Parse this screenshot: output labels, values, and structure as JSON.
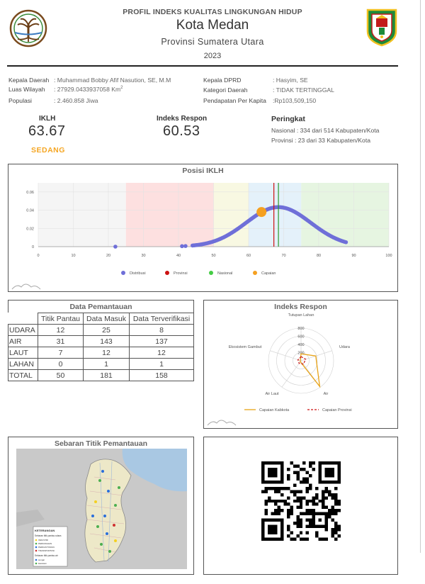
{
  "header": {
    "top_title": "PROFIL INDEKS KUALITAS LINGKUNGAN HIDUP",
    "city": "Kota Medan",
    "province": "Provinsi Sumatera Utara",
    "year": "2023"
  },
  "info": {
    "kepala_daerah_label": "Kepala Daerah",
    "kepala_daerah": "Muhammad Bobby Afif Nasution, SE, M.M",
    "luas_label": "Luas Wilayah",
    "luas": "27929.0433937058 Km",
    "luas_sup": "2",
    "populasi_label": "Populasi",
    "populasi": "2.460.858 Jiwa",
    "dprd_label": "Kepala DPRD",
    "dprd": "Hasyim, SE",
    "kategori_label": "Kategori Daerah",
    "kategori": "TIDAK TERTINGGAL",
    "pendapatan_label": "Pendapatan Per Kapita",
    "pendapatan": "Rp103,509,150"
  },
  "kpi": {
    "iklh_label": "IKLH",
    "iklh_value": "63.67",
    "iklh_category": "SEDANG",
    "respon_label": "Indeks Respon",
    "respon_value": "60.53",
    "peringkat_label": "Peringkat",
    "nasional": "Nasional : 334 dari 514 Kabupaten/Kota",
    "provinsi": "Provinsi  : 23 dari 33 Kabupaten/Kota"
  },
  "chart_data": [
    {
      "type": "scatter",
      "title": "Posisi IKLH",
      "xlim": [
        0,
        100
      ],
      "ylim": [
        0,
        0.07
      ],
      "x_ticks": [
        "0",
        "10",
        "20",
        "30",
        "40",
        "50",
        "60",
        "70",
        "80",
        "90",
        "100"
      ],
      "y_ticks": [
        "0",
        "0.02",
        "0.04",
        "0.06"
      ],
      "bands": [
        {
          "from": 0,
          "to": 25,
          "color": "#f5f5f5"
        },
        {
          "from": 25,
          "to": 50,
          "color": "#fde0e0"
        },
        {
          "from": 50,
          "to": 60,
          "color": "#f8f8e2"
        },
        {
          "from": 60,
          "to": 75,
          "color": "#e4f1fa"
        },
        {
          "from": 75,
          "to": 100,
          "color": "#e6f5e1"
        }
      ],
      "distribution": {
        "mean": 68.5,
        "sd": 9.2
      },
      "outliers": [
        22,
        41,
        42
      ],
      "provinsi_x": 67.2,
      "nasional_x": 68.5,
      "capaian": {
        "x": 63.67,
        "y": 0.038
      },
      "legend": [
        {
          "name": "Distribusi",
          "color": "#6f6fd8"
        },
        {
          "name": "Provinsi",
          "color": "#cc1111"
        },
        {
          "name": "Nasional",
          "color": "#44cc44"
        },
        {
          "name": "Capaian",
          "color": "#f5a020"
        }
      ],
      "grid": true
    },
    {
      "type": "radar",
      "title": "Indeks Respon",
      "axes": [
        "Tutupan Lahan",
        "Udara",
        "Air",
        "Air Laut",
        "Ekosistem Gambut"
      ],
      "rmax": 800,
      "r_ticks": [
        "200",
        "400",
        "600",
        "800"
      ],
      "series": [
        {
          "name": "Capaian Kabkota",
          "color": "#e8a317",
          "values": [
            170,
            380,
            780,
            30,
            20
          ]
        },
        {
          "name": "Capaian Provinsi",
          "color": "#cc1111",
          "values": [
            100,
            120,
            100,
            80,
            80
          ]
        }
      ]
    }
  ],
  "table": {
    "title": "Data Pemantauan",
    "columns": [
      "Titik Pantau",
      "Data Masuk",
      "Data Terverifikasi"
    ],
    "rows": [
      {
        "label": "UDARA",
        "v": [
          "12",
          "25",
          "8"
        ]
      },
      {
        "label": "AIR",
        "v": [
          "31",
          "143",
          "137"
        ]
      },
      {
        "label": "LAUT",
        "v": [
          "7",
          "12",
          "12"
        ]
      },
      {
        "label": "LAHAN",
        "v": [
          "0",
          "1",
          "1"
        ]
      },
      {
        "label": "TOTAL",
        "v": [
          "50",
          "181",
          "158"
        ]
      }
    ]
  },
  "map": {
    "title": "Sebaran Titik Pemantauan",
    "legend_title": "KETERANGAN",
    "legend_items": [
      "Sebaran titik pantau udara",
      "INDUSTRI",
      "PERUMAHAN",
      "PERKANTORAN",
      "TRANSPORTASI",
      "Sebaran titik pantau air",
      "sungai",
      "kawasan"
    ]
  },
  "colors": {
    "accent": "#f5a623",
    "distribusi": "#6f6fd8",
    "provinsi": "#cc1111",
    "nasional": "#44cc44"
  },
  "icons": {
    "left_logo": "klhk-tree-logo",
    "right_logo": "medan-city-emblem",
    "watermark": "mountain-watermark-icon",
    "qr": "qr-code"
  }
}
